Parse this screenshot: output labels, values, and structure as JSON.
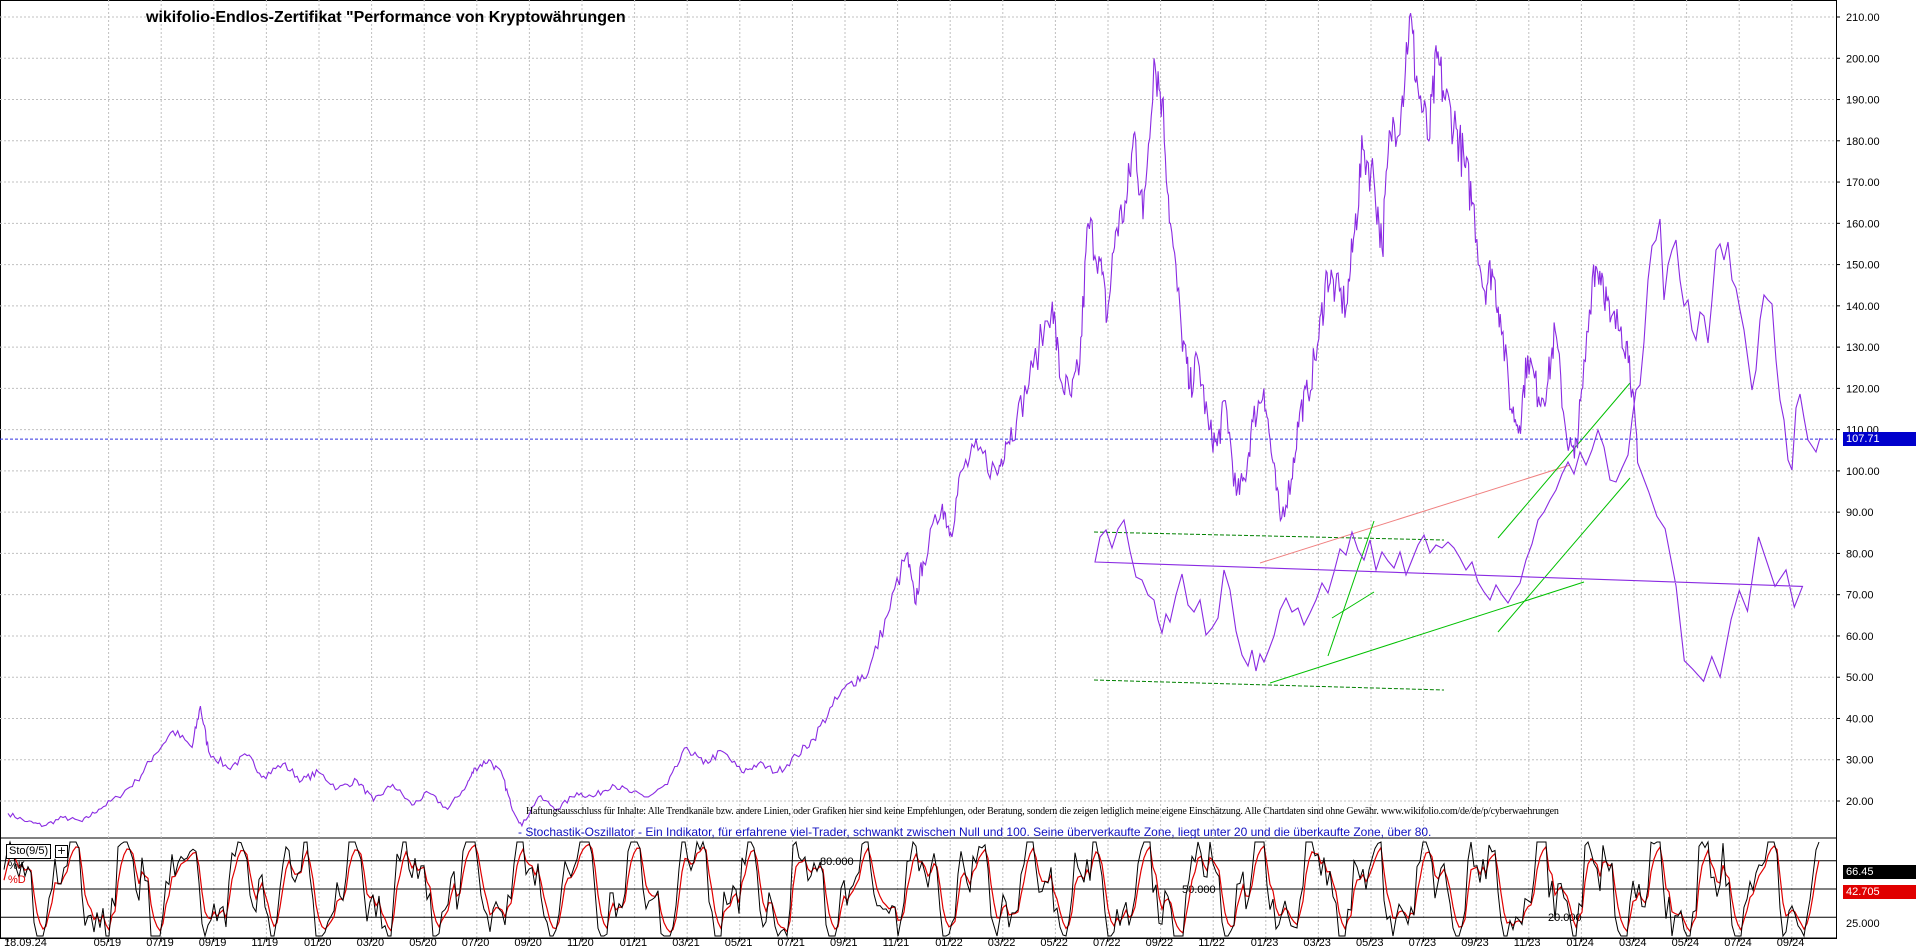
{
  "title": "wikifolio-Endlos-Zertifikat \"Performance von Kryptowährungen",
  "disclaimer": "Haftungsausschluss für Inhalte: Alle Trendkanäle bzw. andere Linien, oder Grafiken hier sind keine Empfehlungen, oder Beratung, sondern die zeigen lediglich meine eigene Einschätzung. Alle Chartdaten sind ohne Gewähr.  www.wikifolio.com/de/de/p/cyberwaehrungen",
  "stochastic_description": "- Stochastik-Oszillator - Ein Indikator, für erfahrene viel-Trader, schwankt zwischen Null und 100. Seine überverkaufte Zone, liegt unter 20 und die überkaufte Zone, über 80.",
  "stochastic_box_label": "Sto(9/5)",
  "stochastic_k_label": "%K",
  "stochastic_d_label": "%D",
  "colors": {
    "price_line": "#8a2be2",
    "current_price_line": "#3030e0",
    "k_line": "#000000",
    "d_line": "#e00000",
    "trend_green": "#00c000",
    "trend_dashed_green": "#008000",
    "trend_pink": "#f08080",
    "grid": "#c0c0c0"
  },
  "chart_data": [
    {
      "type": "line",
      "title": "wikifolio-Endlos-Zertifikat \"Performance von Kryptowährungen",
      "xlabel": "",
      "ylabel": "",
      "ylim": [
        10,
        215
      ],
      "yticks": [
        "20.00",
        "30.00",
        "40.00",
        "50.00",
        "60.00",
        "70.00",
        "80.00",
        "90.00",
        "100.00",
        "110.00",
        "120.00",
        "130.00",
        "140.00",
        "150.00",
        "160.00",
        "170.00",
        "180.00",
        "190.00",
        "200.00",
        "210.00"
      ],
      "xticks": [
        "18.09.24",
        "05/19",
        "07/19",
        "09/19",
        "11/19",
        "01/20",
        "03/20",
        "05/20",
        "07/20",
        "09/20",
        "11/20",
        "01/21",
        "03/21",
        "05/21",
        "07/21",
        "09/21",
        "11/21",
        "01/22",
        "03/22",
        "05/22",
        "07/22",
        "09/22",
        "11/22",
        "01/23",
        "03/23",
        "05/23",
        "07/23",
        "09/23",
        "11/23",
        "01/24",
        "03/24",
        "05/24",
        "07/24",
        "09/24"
      ],
      "x_range": [
        0,
        65.5
      ],
      "grid": true,
      "current_value": "107.71",
      "series": [
        {
          "points": [
            [
              0,
              17
            ],
            [
              0.7,
              15
            ],
            [
              1.3,
              14
            ],
            [
              2,
              16
            ],
            [
              2.7,
              15
            ],
            [
              3.3,
              18
            ],
            [
              4,
              21
            ],
            [
              4.7,
              25
            ],
            [
              5.3,
              31
            ],
            [
              6,
              37
            ],
            [
              6.7,
              33
            ],
            [
              7,
              43
            ],
            [
              7.3,
              32
            ],
            [
              8,
              28
            ],
            [
              8.7,
              31
            ],
            [
              9.3,
              26
            ],
            [
              10,
              29
            ],
            [
              10.7,
              25
            ],
            [
              11.3,
              27
            ],
            [
              12,
              23
            ],
            [
              12.7,
              25
            ],
            [
              13.3,
              20
            ],
            [
              14,
              24
            ],
            [
              14.7,
              19
            ],
            [
              15.3,
              22
            ],
            [
              16,
              18
            ],
            [
              16.7,
              24
            ],
            [
              17,
              28
            ],
            [
              17.5,
              30
            ],
            [
              18,
              26
            ],
            [
              18.3,
              19
            ],
            [
              18.7,
              14
            ],
            [
              19.3,
              21
            ],
            [
              20,
              18
            ],
            [
              20.7,
              22
            ],
            [
              21.3,
              21
            ],
            [
              22,
              24
            ],
            [
              22.7,
              22
            ],
            [
              23.3,
              21
            ],
            [
              24,
              24
            ],
            [
              24.7,
              33
            ],
            [
              25.3,
              29
            ],
            [
              26,
              32
            ],
            [
              26.7,
              27
            ],
            [
              27.3,
              29
            ],
            [
              28,
              27
            ],
            [
              28.7,
              31
            ],
            [
              29.3,
              35
            ],
            [
              30,
              43
            ],
            [
              30.7,
              49
            ],
            [
              31.3,
              51
            ],
            [
              32,
              65
            ],
            [
              32.7,
              80
            ],
            [
              33,
              68
            ],
            [
              33.3,
              78
            ],
            [
              34,
              92
            ],
            [
              34.3,
              85
            ],
            [
              34.7,
              100
            ],
            [
              35.3,
              105
            ],
            [
              36,
              99
            ],
            [
              36.3,
              107
            ],
            [
              36.7,
              112
            ],
            [
              37.3,
              125
            ],
            [
              38,
              141
            ],
            [
              38.3,
              122
            ],
            [
              38.7,
              118
            ],
            [
              39,
              126
            ],
            [
              39.3,
              160
            ],
            [
              39.7,
              152
            ],
            [
              40,
              137
            ],
            [
              40.3,
              158
            ],
            [
              40.7,
              165
            ],
            [
              41,
              182
            ],
            [
              41.3,
              161
            ],
            [
              41.7,
              200
            ],
            [
              42,
              190
            ],
            [
              42.3,
              160
            ],
            [
              42.7,
              134
            ],
            [
              43,
              120
            ],
            [
              43.3,
              127
            ],
            [
              43.7,
              110
            ],
            [
              44,
              106
            ],
            [
              44.3,
              117
            ],
            [
              44.7,
              94
            ],
            [
              45,
              98
            ],
            [
              45.3,
              112
            ],
            [
              45.7,
              120
            ],
            [
              46,
              103
            ],
            [
              46.3,
              88
            ],
            [
              46.7,
              98
            ],
            [
              47,
              114
            ],
            [
              47.3,
              119
            ],
            [
              47.7,
              132
            ],
            [
              48,
              148
            ],
            [
              48.3,
              144
            ],
            [
              48.7,
              140
            ],
            [
              49,
              158
            ],
            [
              49.3,
              178
            ],
            [
              49.7,
              171
            ],
            [
              50,
              154
            ],
            [
              50.3,
              182
            ],
            [
              50.7,
              188
            ],
            [
              51,
              210
            ],
            [
              51.3,
              193
            ],
            [
              51.7,
              180
            ],
            [
              52,
              200
            ],
            [
              52.3,
              190
            ],
            [
              52.7,
              183
            ],
            [
              53,
              174
            ],
            [
              53.3,
              165
            ],
            [
              53.7,
              144
            ],
            [
              54,
              149
            ],
            [
              54.3,
              138
            ],
            [
              54.7,
              115
            ],
            [
              55,
              111
            ],
            [
              55.3,
              128
            ],
            [
              55.7,
              118
            ],
            [
              56,
              120
            ],
            [
              56.3,
              134
            ],
            [
              56.7,
              109
            ],
            [
              57,
              103
            ],
            [
              57.3,
              120
            ],
            [
              57.7,
              150
            ],
            [
              58,
              148
            ],
            [
              58.3,
              136
            ],
            [
              58.7,
              135
            ],
            [
              59,
              128
            ],
            [
              59.3,
              102
            ]
          ]
        }
      ]
    },
    {
      "type": "line",
      "title": "Sto(9/5)",
      "ylim": [
        0,
        100
      ],
      "level_labels": [
        "20.000",
        "50.000",
        "80.000",
        "25.000"
      ],
      "current_k": "66.45",
      "current_d": "42.705",
      "series": [
        {
          "name": "%K",
          "values_note_free": true
        },
        {
          "name": "%D"
        }
      ]
    }
  ]
}
